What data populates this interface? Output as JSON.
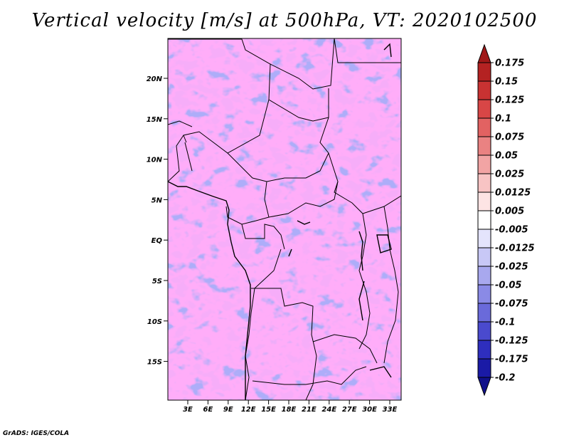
{
  "title": "Vertical velocity [m/s] at 500hPa, VT: 2020102500",
  "credit": "GrADS: IGES/COLA",
  "lat_labels": [
    "20N",
    "15N",
    "10N",
    "5N",
    "EQ",
    "5S",
    "10S",
    "15S"
  ],
  "lon_labels": [
    "3E",
    "6E",
    "9E",
    "12E",
    "15E",
    "18E",
    "21E",
    "24E",
    "27E",
    "30E",
    "33E"
  ],
  "colorbar": {
    "labels": [
      "0.175",
      "0.15",
      "0.125",
      "0.1",
      "0.075",
      "0.05",
      "0.025",
      "0.0125",
      "0.005",
      "-0.005",
      "-0.0125",
      "-0.025",
      "-0.05",
      "-0.075",
      "-0.1",
      "-0.125",
      "-0.175",
      "-0.2"
    ],
    "colors": [
      "#a01818",
      "#b42222",
      "#c83232",
      "#d84646",
      "#e26262",
      "#ea8282",
      "#f2a4a4",
      "#f8c4c4",
      "#fde4e4",
      "#ffffff",
      "#e4e4fc",
      "#c8c8f6",
      "#a8a8ee",
      "#8a8ae6",
      "#6a6ada",
      "#4a4ace",
      "#2e2ebe",
      "#1a1aa6",
      "#10108a"
    ]
  }
}
